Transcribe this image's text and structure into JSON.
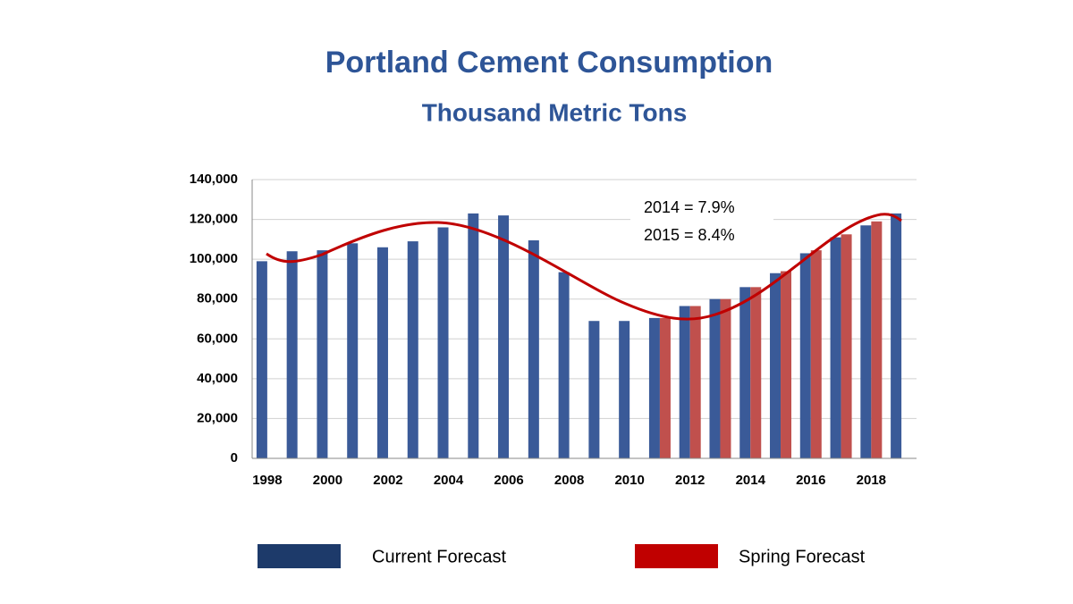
{
  "chart_data": {
    "type": "bar",
    "title": "Portland Cement Consumption",
    "subtitle": "Thousand Metric Tons",
    "categories": [
      "1998",
      null,
      "2000",
      null,
      "2002",
      null,
      "2004",
      null,
      "2006",
      null,
      "2008",
      null,
      "2010",
      null,
      "2012",
      null,
      "2014",
      null,
      "2016",
      null,
      "2018",
      null
    ],
    "series": [
      {
        "name": "Current Forecast",
        "color": "#3a5a98",
        "legend_color": "#1d3a6a",
        "values": [
          99000,
          104000,
          104500,
          108000,
          106000,
          109000,
          116000,
          123000,
          122000,
          109500,
          93500,
          69000,
          69000,
          70500,
          76500,
          80000,
          86000,
          93000,
          103000,
          111000,
          117000,
          123000
        ]
      },
      {
        "name": "Spring Forecast",
        "color": "#c0504d",
        "legend_color": "#c00000",
        "values": [
          null,
          null,
          null,
          null,
          null,
          null,
          null,
          null,
          null,
          null,
          null,
          null,
          null,
          70500,
          76500,
          80000,
          86000,
          94000,
          104500,
          112500,
          119000,
          null
        ]
      }
    ],
    "ylim": [
      0,
      140000
    ],
    "yticks": [
      0,
      {
        "value": 20000,
        "label": "20,000"
      },
      {
        "value": 40000,
        "label": "40,000"
      },
      {
        "value": 60000,
        "label": "60,000"
      },
      {
        "value": 80000,
        "label": "80,000"
      },
      {
        "value": 100000,
        "label": "100,000"
      },
      {
        "value": 120000,
        "label": "120,000"
      },
      {
        "value": 140000,
        "label": "140,000"
      }
    ],
    "grid": true,
    "annotations": [
      "2014 = 7.9%",
      "2015 = 8.4%"
    ]
  }
}
